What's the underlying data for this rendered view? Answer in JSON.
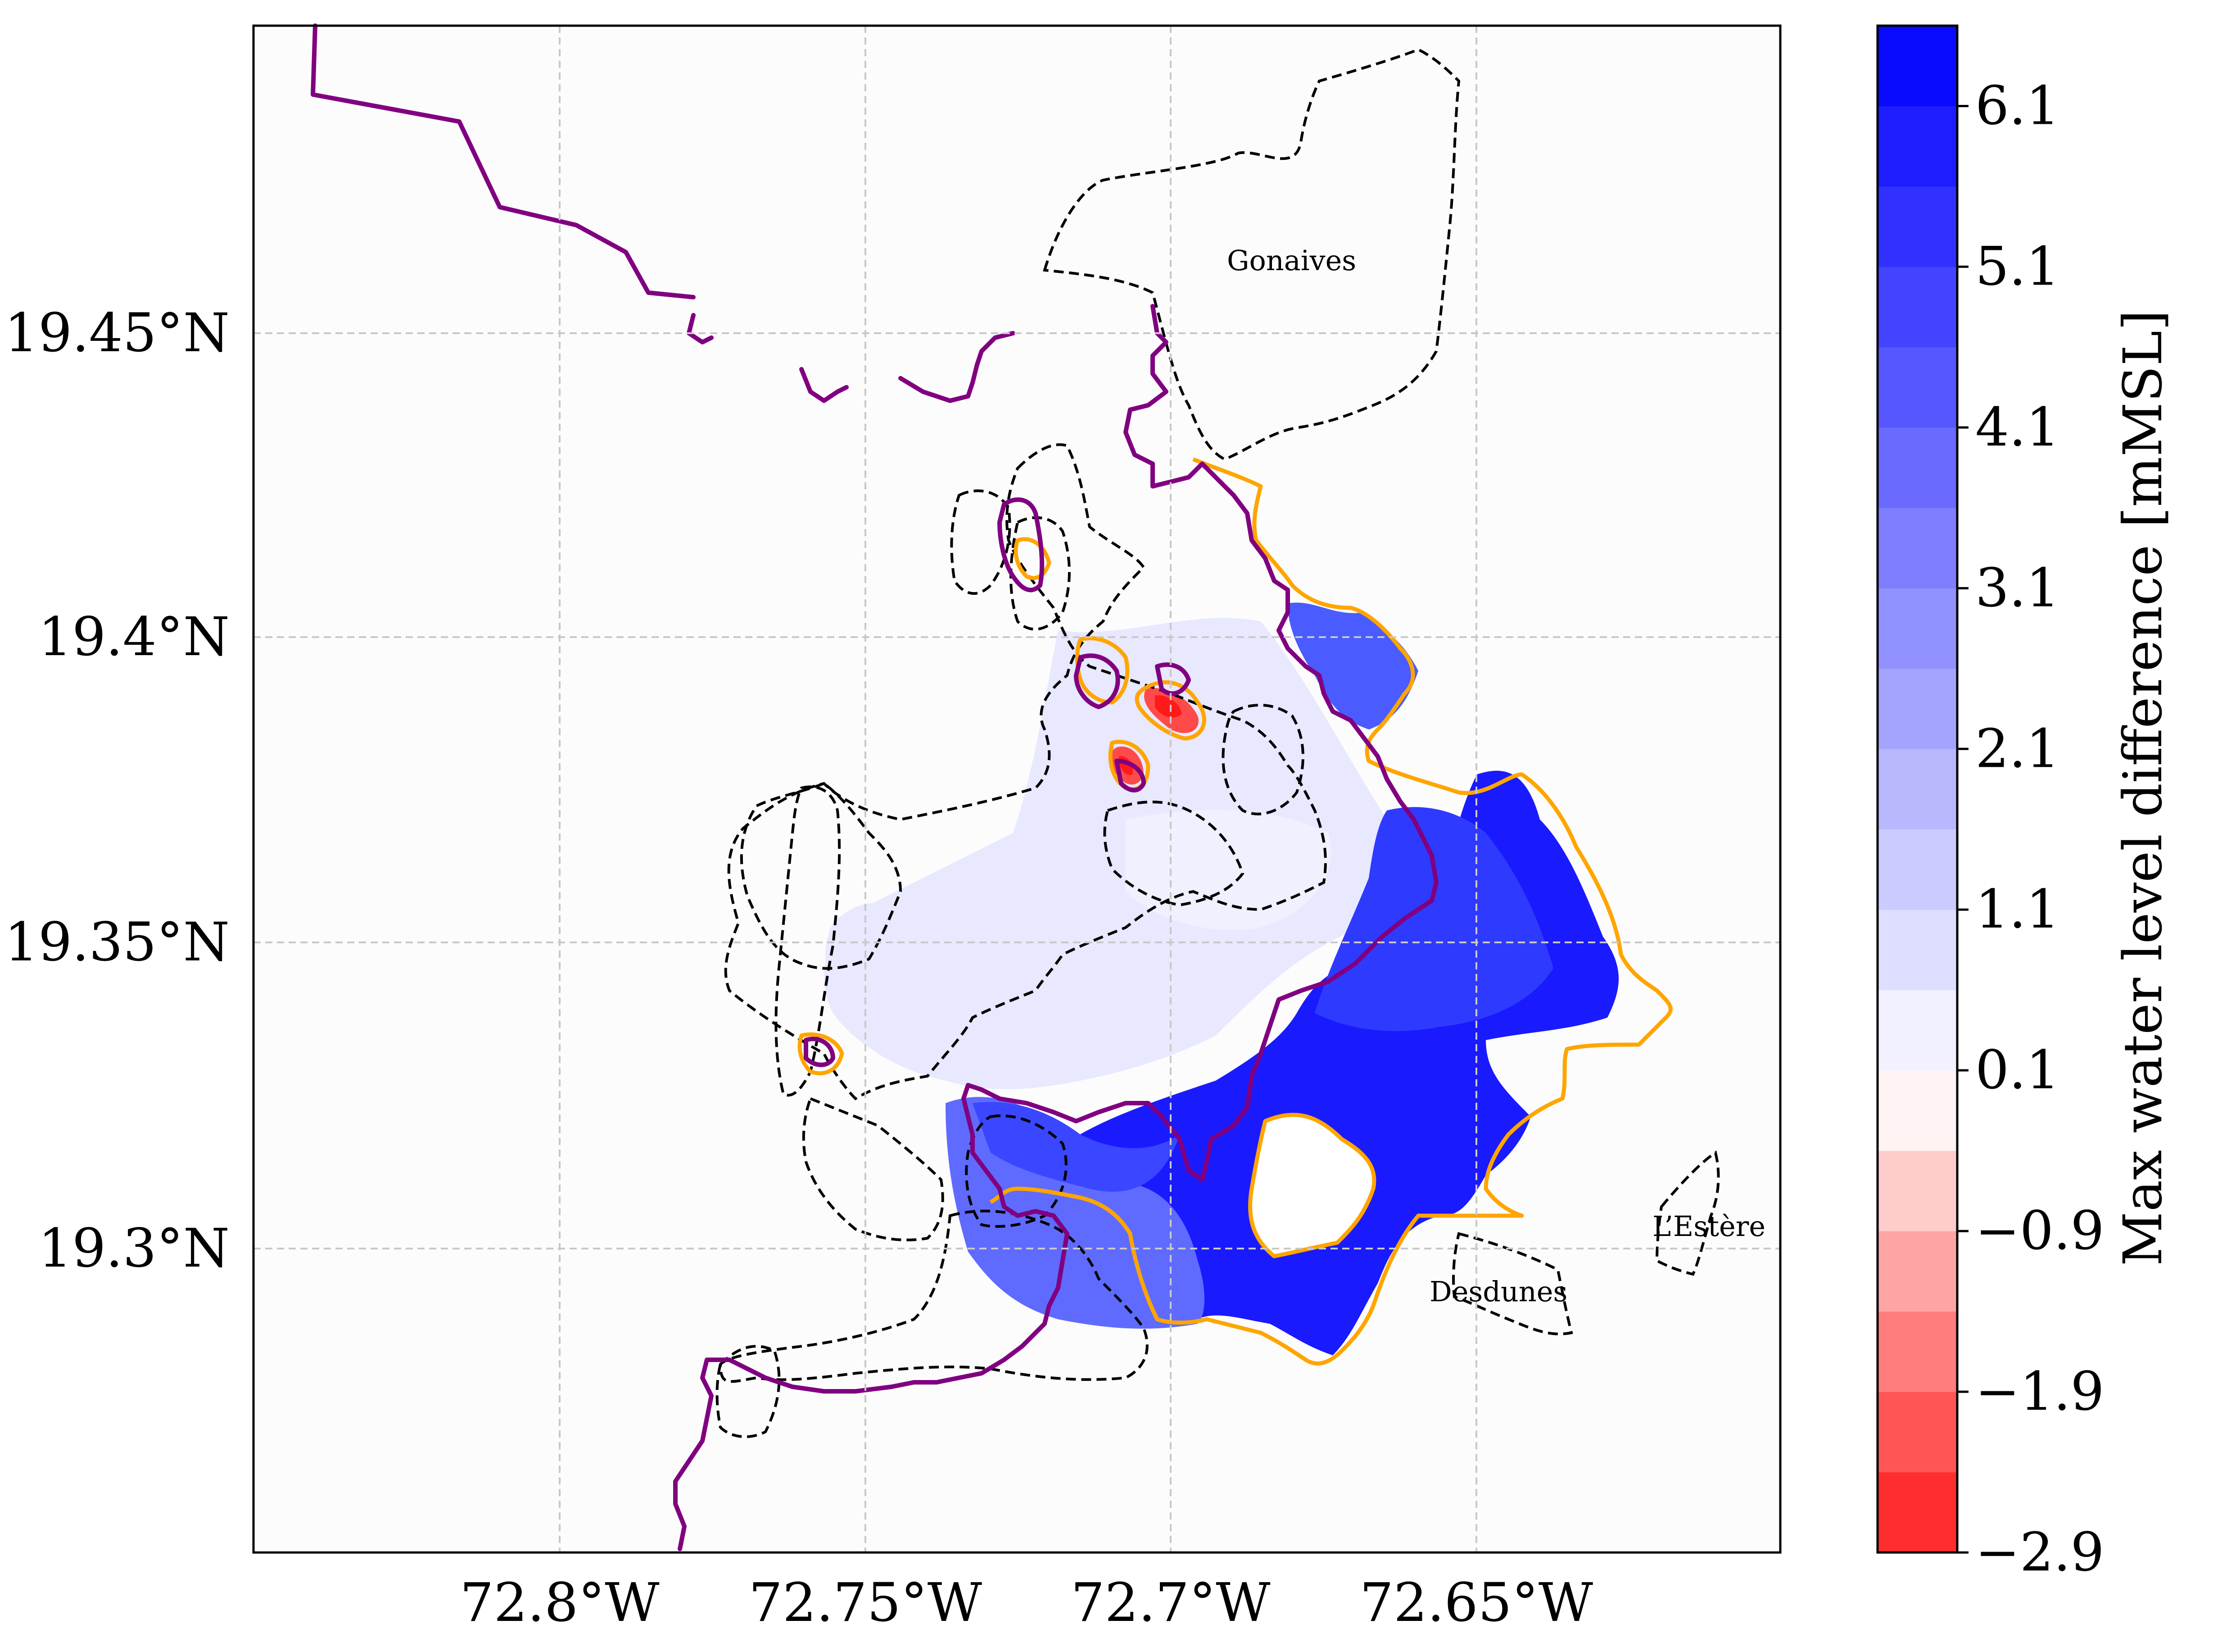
{
  "map": {
    "x_ticks": [
      "72.8°W",
      "72.75°W",
      "72.7°W",
      "72.65°W"
    ],
    "y_ticks": [
      "19.45°N",
      "19.4°N",
      "19.35°N",
      "19.3°N"
    ],
    "places": {
      "gonaives": "Gonaives",
      "desdunes": "Desdunes",
      "lestere": "L’Estère"
    },
    "colors": {
      "coastline": "#800080",
      "flood_extent": "#ffa500",
      "commune_boundary": "#000000",
      "grid": "#cccccc"
    }
  },
  "colorbar": {
    "label": "Max water level difference [mMSL]",
    "range": [
      -2.9,
      6.6
    ],
    "tick_labels": [
      "−2.9",
      "−1.9",
      "−0.9",
      "0.1",
      "1.1",
      "2.1",
      "3.1",
      "4.1",
      "5.1",
      "6.1"
    ],
    "colors": {
      "negative_max": "#ff1a1a",
      "zero": "#ffffff",
      "positive_max": "#0000ff"
    }
  }
}
